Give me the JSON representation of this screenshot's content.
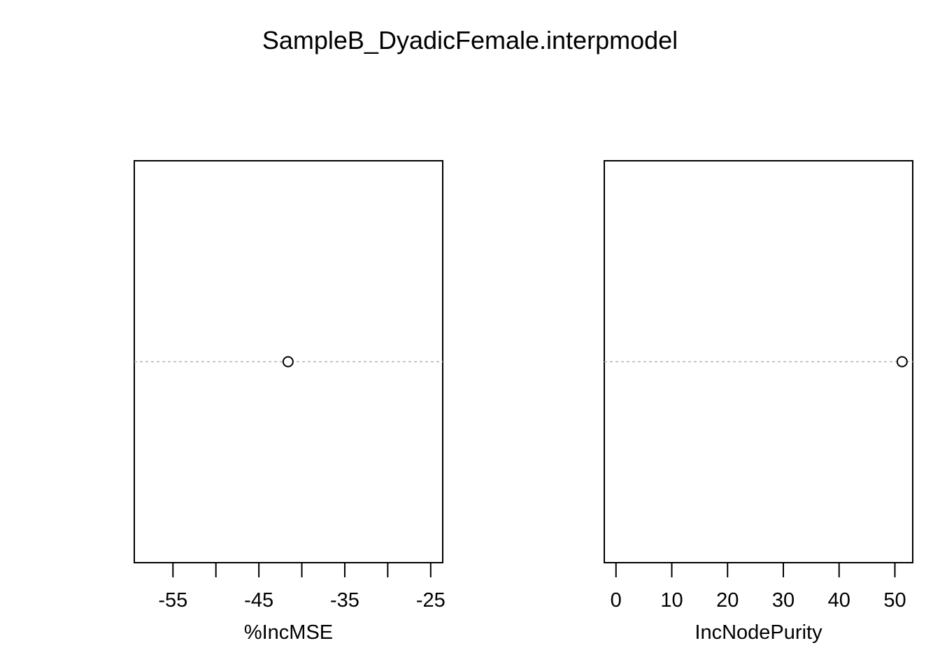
{
  "title": "SampleB_DyadicFemale.interpmodel",
  "colors": {
    "axis": "#000000",
    "guide": "#b3b3b3",
    "point": "#000000",
    "background": "#ffffff"
  },
  "chart_data": [
    {
      "type": "scatter",
      "xlabel": "%IncMSE",
      "ylabel": "",
      "xlim": [
        -59.5,
        -23.6
      ],
      "ticks": [
        -55,
        -50,
        -45,
        -40,
        -35,
        -30,
        -25
      ],
      "tick_labels": [
        "-55",
        "",
        "-45",
        "",
        "-35",
        "",
        "-25"
      ],
      "points": [
        {
          "x": -41.6,
          "y": 1
        }
      ],
      "grid": false,
      "legend": "none"
    },
    {
      "type": "scatter",
      "xlabel": "IncNodePurity",
      "ylabel": "",
      "xlim": [
        -2.1,
        53.2
      ],
      "ticks": [
        0,
        10,
        20,
        30,
        40,
        50
      ],
      "tick_labels": [
        "0",
        "10",
        "20",
        "30",
        "40",
        "50"
      ],
      "points": [
        {
          "x": 51.3,
          "y": 1
        }
      ],
      "grid": false,
      "legend": "none"
    }
  ]
}
